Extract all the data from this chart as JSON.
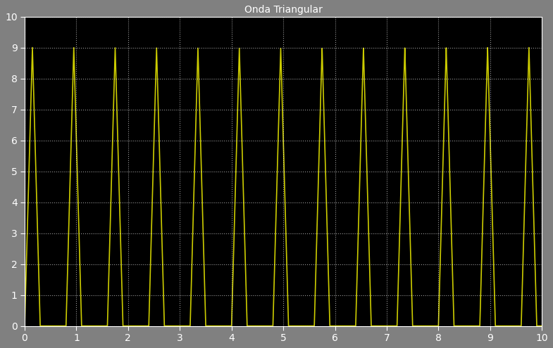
{
  "title": "Onda Triangular",
  "xlim": [
    0,
    10
  ],
  "ylim": [
    0,
    10
  ],
  "xticks": [
    0,
    1,
    2,
    3,
    4,
    5,
    6,
    7,
    8,
    9,
    10
  ],
  "yticks": [
    0,
    1,
    2,
    3,
    4,
    5,
    6,
    7,
    8,
    9,
    10
  ],
  "background_color": "#000000",
  "figure_bg_color": "#808080",
  "line_color": "#cccc00",
  "line_width": 1.2,
  "grid_color": "#ffffff",
  "grid_style": ":",
  "grid_alpha": 0.6,
  "title_color": "#ffffff",
  "tick_color": "#ffffff",
  "wave_period": 0.8,
  "wave_min": 0.0,
  "wave_max": 9.0,
  "t_start": 0.0,
  "t_end": 10.0,
  "num_points": 10000
}
